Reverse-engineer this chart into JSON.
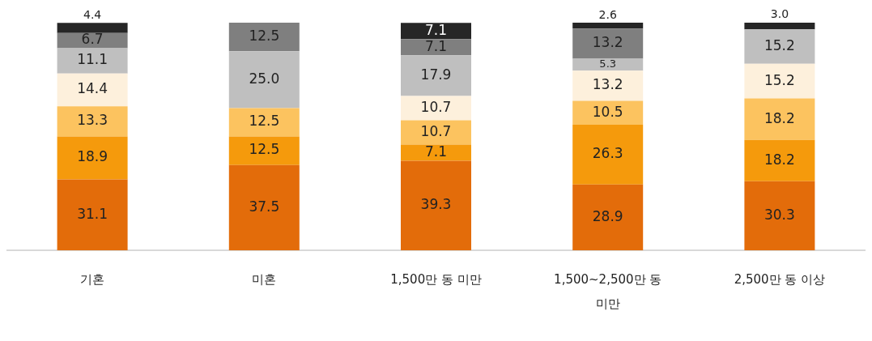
{
  "chart_data": {
    "type": "bar",
    "stacked": true,
    "categories": [
      "기혼",
      "미혼",
      "1,500만 동 미만",
      "1,500~2,500만 동 미만",
      "2,500만 동 이상"
    ],
    "series": [
      {
        "color": "#e36c0a",
        "values": [
          31.1,
          37.5,
          39.3,
          28.9,
          30.3
        ],
        "value_labels": [
          "31.1",
          "37.5",
          "39.3",
          "28.9",
          "30.3"
        ]
      },
      {
        "color": "#f59a0c",
        "values": [
          18.9,
          12.5,
          7.1,
          26.3,
          18.2
        ],
        "value_labels": [
          "18.9",
          "12.5",
          "7.1",
          "26.3",
          "18.2"
        ]
      },
      {
        "color": "#fcc35f",
        "values": [
          13.3,
          12.5,
          10.7,
          10.5,
          18.2
        ],
        "value_labels": [
          "13.3",
          "12.5",
          "10.7",
          "10.5",
          "18.2"
        ]
      },
      {
        "color": "#fdf0dc",
        "values": [
          14.4,
          null,
          10.7,
          13.2,
          15.2
        ],
        "value_labels": [
          "14.4",
          null,
          "10.7",
          "13.2",
          "15.2"
        ]
      },
      {
        "color": "#bfbfbf",
        "values": [
          11.1,
          25.0,
          17.9,
          5.3,
          15.2
        ],
        "value_labels": [
          "11.1",
          "25.0",
          "17.9",
          "5.3",
          "15.2"
        ]
      },
      {
        "color": "#7f7f7f",
        "values": [
          6.7,
          12.5,
          7.1,
          13.2,
          null
        ],
        "value_labels": [
          "6.7",
          "12.5",
          "7.1",
          "13.2",
          null
        ]
      },
      {
        "color": "#262626",
        "values": [
          4.4,
          null,
          7.1,
          2.6,
          3.0
        ],
        "value_labels": [
          "4.4",
          null,
          "7.1",
          "2.6",
          "3.0"
        ]
      }
    ],
    "ylim": [
      0,
      100
    ],
    "tick_labels": "x",
    "grid": false,
    "legend": false
  }
}
